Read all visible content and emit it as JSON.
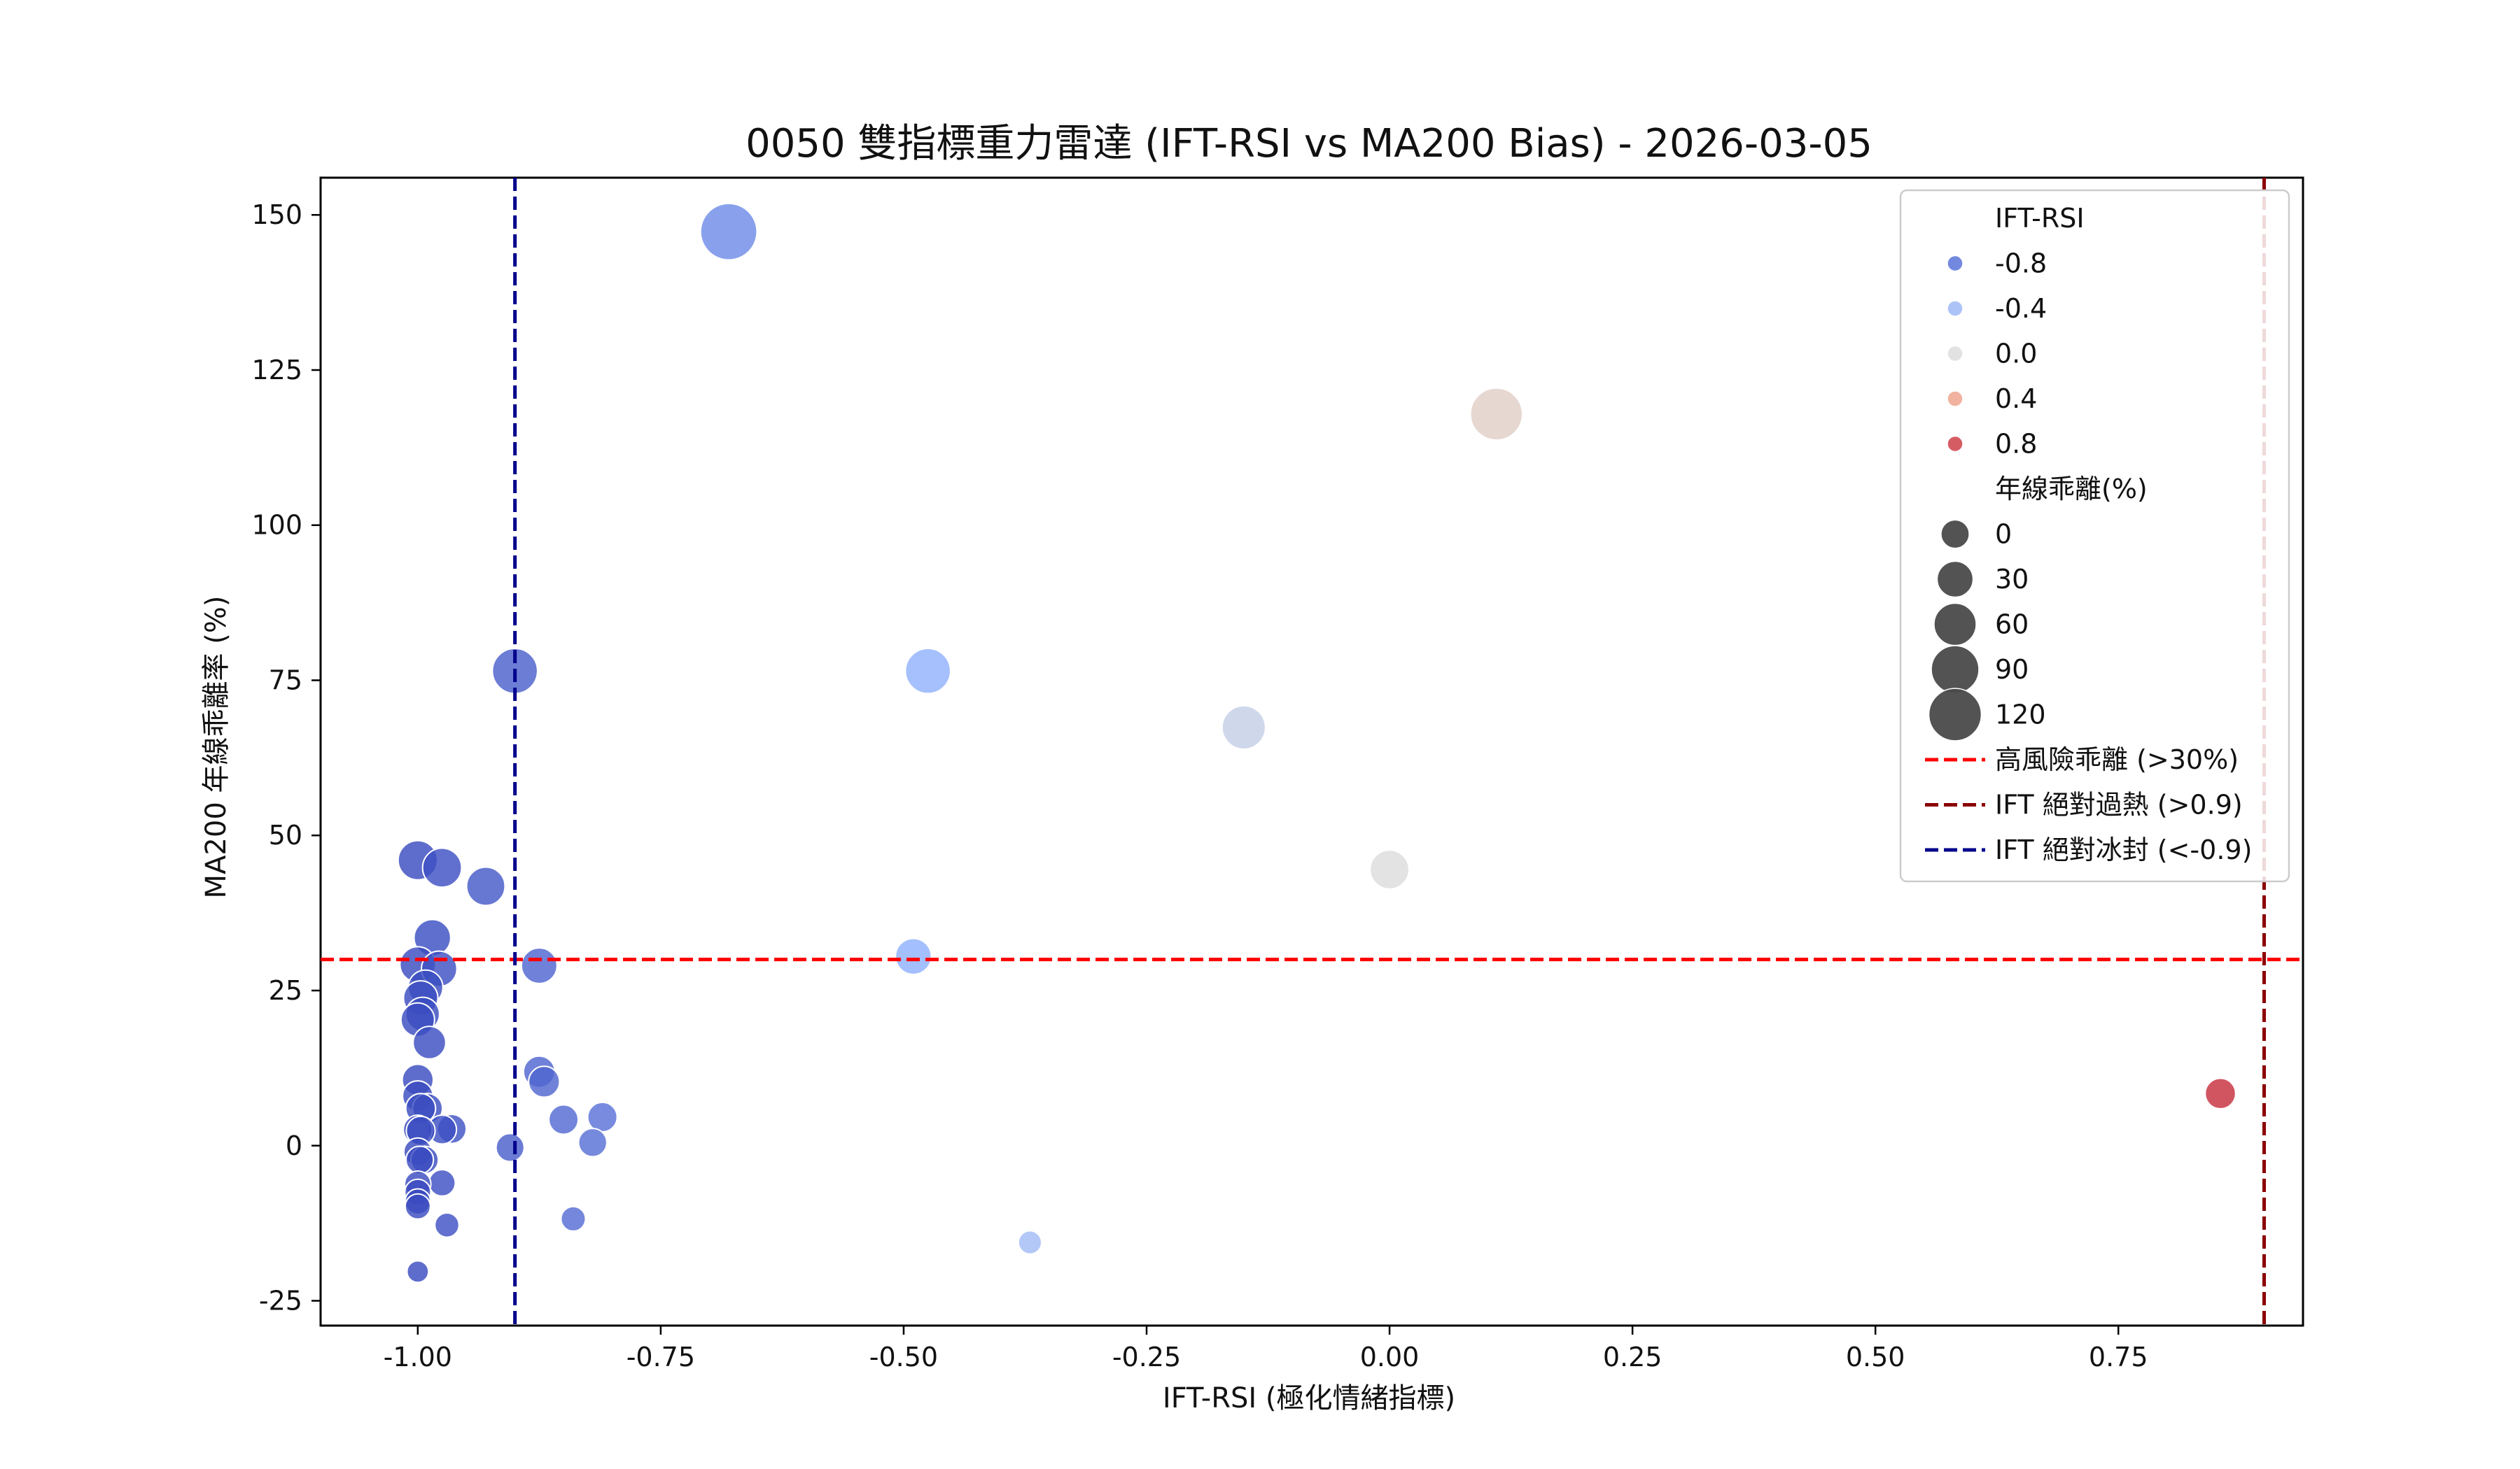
{
  "chart_data": {
    "type": "scatter",
    "title": "0050 雙指標重力雷達 (IFT-RSI vs MA200 Bias) - 2026-03-05",
    "xlabel": "IFT-RSI (極化情緒指標)",
    "ylabel": "MA200 年線乖離率 (%)",
    "xlim": [
      -1.1,
      0.94
    ],
    "ylim": [
      -29,
      156
    ],
    "x_ticks": [
      -1.0,
      -0.75,
      -0.5,
      -0.25,
      0.0,
      0.25,
      0.5,
      0.75
    ],
    "x_tick_labels": [
      "-1.00",
      "-0.75",
      "-0.50",
      "-0.25",
      "0.00",
      "0.25",
      "0.50",
      "0.75"
    ],
    "y_ticks": [
      -25,
      0,
      25,
      50,
      75,
      100,
      125,
      150
    ],
    "y_tick_labels": [
      "-25",
      "0",
      "25",
      "50",
      "75",
      "100",
      "125",
      "150"
    ],
    "grid": false,
    "color_encoding": "IFT-RSI (coolwarm, -1 blue to +1 red)",
    "size_encoding": "年線乖離(%)",
    "points": [
      {
        "x": -0.68,
        "y": 147.3
      },
      {
        "x": 0.11,
        "y": 117.9
      },
      {
        "x": -0.9,
        "y": 76.5
      },
      {
        "x": -0.475,
        "y": 76.5
      },
      {
        "x": -0.15,
        "y": 67.4
      },
      {
        "x": -1.0,
        "y": 46.0
      },
      {
        "x": -0.975,
        "y": 44.8
      },
      {
        "x": -0.93,
        "y": 41.8
      },
      {
        "x": 0.0,
        "y": 44.5
      },
      {
        "x": -0.985,
        "y": 33.5
      },
      {
        "x": -0.49,
        "y": 30.5
      },
      {
        "x": -0.875,
        "y": 29.0
      },
      {
        "x": -1.0,
        "y": 29.2
      },
      {
        "x": -0.978,
        "y": 28.5
      },
      {
        "x": -0.992,
        "y": 25.5
      },
      {
        "x": -0.997,
        "y": 23.8
      },
      {
        "x": -0.995,
        "y": 21.2
      },
      {
        "x": -1.0,
        "y": 20.3
      },
      {
        "x": -0.988,
        "y": 16.6
      },
      {
        "x": -0.875,
        "y": 11.9
      },
      {
        "x": -0.87,
        "y": 10.3
      },
      {
        "x": -1.0,
        "y": 10.6
      },
      {
        "x": -1.0,
        "y": 8.0
      },
      {
        "x": -0.99,
        "y": 6.0
      },
      {
        "x": -0.997,
        "y": 6.0
      },
      {
        "x": -0.81,
        "y": 4.6
      },
      {
        "x": -0.85,
        "y": 4.2
      },
      {
        "x": -0.965,
        "y": 2.7
      },
      {
        "x": -0.975,
        "y": 2.6
      },
      {
        "x": -1.0,
        "y": 2.6
      },
      {
        "x": -0.997,
        "y": 2.4
      },
      {
        "x": -0.82,
        "y": 0.5
      },
      {
        "x": -0.905,
        "y": -0.3
      },
      {
        "x": -1.0,
        "y": -1.0
      },
      {
        "x": -0.993,
        "y": -2.3
      },
      {
        "x": -0.998,
        "y": -2.3
      },
      {
        "x": -0.975,
        "y": -6.0
      },
      {
        "x": -1.0,
        "y": -6.2
      },
      {
        "x": -1.0,
        "y": -7.5
      },
      {
        "x": -1.0,
        "y": -9.0
      },
      {
        "x": -1.0,
        "y": -9.8
      },
      {
        "x": -0.84,
        "y": -11.8
      },
      {
        "x": -0.97,
        "y": -12.8
      },
      {
        "x": -0.37,
        "y": -15.6
      },
      {
        "x": -1.0,
        "y": -20.3
      },
      {
        "x": 0.855,
        "y": 8.4
      }
    ],
    "reference_lines": [
      {
        "orientation": "horizontal",
        "value": 30,
        "color": "#ff0000",
        "label": "高風險乖離 (>30%)"
      },
      {
        "orientation": "vertical",
        "value": 0.9,
        "color": "#8b0000",
        "label": "IFT 絕對過熱 (>0.9)"
      },
      {
        "orientation": "vertical",
        "value": -0.9,
        "color": "#00008b",
        "label": "IFT 絕對冰封 (<-0.9)"
      }
    ],
    "legend": {
      "placement": "top-right",
      "hue_title": "IFT-RSI",
      "hue_entries": [
        {
          "label": "-0.8",
          "value": -0.8
        },
        {
          "label": "-0.4",
          "value": -0.4
        },
        {
          "label": "0.0",
          "value": 0.0
        },
        {
          "label": "0.4",
          "value": 0.4
        },
        {
          "label": "0.8",
          "value": 0.8
        }
      ],
      "size_title": "年線乖離(%)",
      "size_entries": [
        {
          "label": "0",
          "value": 0
        },
        {
          "label": "30",
          "value": 30
        },
        {
          "label": "60",
          "value": 60
        },
        {
          "label": "90",
          "value": 90
        },
        {
          "label": "120",
          "value": 120
        }
      ]
    }
  }
}
